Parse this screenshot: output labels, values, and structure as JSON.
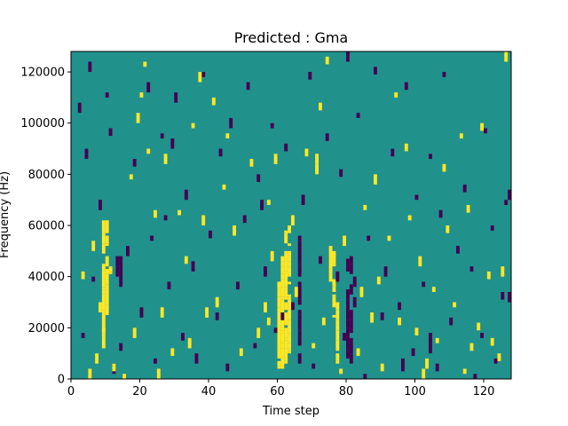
{
  "chart_data": {
    "type": "heatmap",
    "title": "Predicted : Gma",
    "xlabel": "Time step",
    "ylabel": "Frequency (Hz)",
    "xlim": [
      0,
      128
    ],
    "ylim": [
      0,
      128000
    ],
    "x_ticks": [
      0,
      20,
      40,
      60,
      80,
      100,
      120
    ],
    "y_ticks": [
      0,
      20000,
      40000,
      60000,
      80000,
      100000,
      120000
    ],
    "grid": false,
    "legend": "none",
    "colors": {
      "low": "#440154",
      "mid": "#21918c",
      "high": "#fde725"
    },
    "n_time_steps": 128,
    "n_freq_bins": 128,
    "background_value": 0,
    "high_columns": [
      {
        "x": 9,
        "f_from": 12000,
        "f_to": 62000
      },
      {
        "x": 10,
        "f_from": 22000,
        "f_to": 62000
      },
      {
        "x": 60,
        "f_from": 4000,
        "f_to": 38000
      },
      {
        "x": 61,
        "f_from": 4000,
        "f_to": 48000
      },
      {
        "x": 62,
        "f_from": 6000,
        "f_to": 58000
      },
      {
        "x": 63,
        "f_from": 10000,
        "f_to": 60000
      },
      {
        "x": 75,
        "f_from": 38000,
        "f_to": 52000
      },
      {
        "x": 76,
        "f_from": 24000,
        "f_to": 50000
      },
      {
        "x": 77,
        "f_from": 6000,
        "f_to": 30000
      },
      {
        "x": 71,
        "f_from": 80000,
        "f_to": 88000
      },
      {
        "x": 102,
        "f_from": 0,
        "f_to": 4000
      }
    ],
    "low_columns": [
      {
        "x": 13,
        "f_from": 36000,
        "f_to": 48000
      },
      {
        "x": 14,
        "f_from": 36000,
        "f_to": 48000
      },
      {
        "x": 66,
        "f_from": 6000,
        "f_to": 56000
      },
      {
        "x": 80,
        "f_from": 8000,
        "f_to": 48000
      },
      {
        "x": 81,
        "f_from": 6000,
        "f_to": 48000
      },
      {
        "x": 82,
        "f_from": 28000,
        "f_to": 44000
      },
      {
        "x": 96,
        "f_from": 0,
        "f_to": 8000
      },
      {
        "x": 104,
        "f_from": 10000,
        "f_to": 18000
      },
      {
        "x": 127,
        "f_from": 70000,
        "f_to": 74000
      },
      {
        "x": 127,
        "f_from": 30000,
        "f_to": 34000
      },
      {
        "x": 80,
        "f_from": 124000,
        "f_to": 128000
      },
      {
        "x": 4,
        "f_from": 86000,
        "f_to": 90000
      }
    ],
    "high_cells": [
      [
        5,
        4
      ],
      [
        7,
        10
      ],
      [
        9,
        20
      ],
      [
        12,
        6
      ],
      [
        8,
        30
      ],
      [
        6,
        54
      ],
      [
        11,
        44
      ],
      [
        15,
        2
      ],
      [
        17,
        80
      ],
      [
        19,
        104
      ],
      [
        20,
        112
      ],
      [
        21,
        124
      ],
      [
        22,
        90
      ],
      [
        25,
        4
      ],
      [
        26,
        28
      ],
      [
        27,
        88
      ],
      [
        29,
        12
      ],
      [
        31,
        66
      ],
      [
        33,
        48
      ],
      [
        34,
        16
      ],
      [
        35,
        100
      ],
      [
        37,
        120
      ],
      [
        39,
        28
      ],
      [
        41,
        110
      ],
      [
        42,
        32
      ],
      [
        44,
        76
      ],
      [
        45,
        96
      ],
      [
        47,
        60
      ],
      [
        49,
        12
      ],
      [
        52,
        86
      ],
      [
        54,
        20
      ],
      [
        56,
        30
      ],
      [
        57,
        70
      ],
      [
        58,
        50
      ],
      [
        59,
        88
      ],
      [
        64,
        64
      ],
      [
        65,
        36
      ],
      [
        68,
        90
      ],
      [
        70,
        14
      ],
      [
        72,
        108
      ],
      [
        73,
        24
      ],
      [
        74,
        126
      ],
      [
        78,
        4
      ],
      [
        79,
        56
      ],
      [
        83,
        12
      ],
      [
        84,
        36
      ],
      [
        85,
        68
      ],
      [
        87,
        26
      ],
      [
        88,
        80
      ],
      [
        89,
        40
      ],
      [
        90,
        6
      ],
      [
        92,
        56
      ],
      [
        94,
        112
      ],
      [
        95,
        24
      ],
      [
        97,
        92
      ],
      [
        98,
        64
      ],
      [
        100,
        20
      ],
      [
        101,
        48
      ],
      [
        103,
        8
      ],
      [
        105,
        36
      ],
      [
        106,
        16
      ],
      [
        108,
        84
      ],
      [
        109,
        60
      ],
      [
        111,
        30
      ],
      [
        113,
        96
      ],
      [
        114,
        4
      ],
      [
        115,
        68
      ],
      [
        116,
        14
      ],
      [
        118,
        22
      ],
      [
        119,
        100
      ],
      [
        121,
        42
      ],
      [
        122,
        16
      ],
      [
        124,
        10
      ],
      [
        125,
        44
      ],
      [
        126,
        128
      ],
      [
        57,
        24
      ],
      [
        38,
        64
      ],
      [
        18,
        20
      ],
      [
        3,
        42
      ],
      [
        24,
        66
      ]
    ],
    "low_cells": [
      [
        2,
        108
      ],
      [
        3,
        18
      ],
      [
        5,
        124
      ],
      [
        6,
        40
      ],
      [
        8,
        70
      ],
      [
        10,
        112
      ],
      [
        12,
        6
      ],
      [
        14,
        14
      ],
      [
        16,
        52
      ],
      [
        18,
        86
      ],
      [
        20,
        28
      ],
      [
        22,
        116
      ],
      [
        23,
        56
      ],
      [
        24,
        8
      ],
      [
        26,
        96
      ],
      [
        27,
        64
      ],
      [
        28,
        38
      ],
      [
        30,
        112
      ],
      [
        32,
        18
      ],
      [
        33,
        74
      ],
      [
        35,
        46
      ],
      [
        36,
        10
      ],
      [
        38,
        120
      ],
      [
        40,
        58
      ],
      [
        42,
        26
      ],
      [
        43,
        90
      ],
      [
        45,
        6
      ],
      [
        46,
        102
      ],
      [
        48,
        38
      ],
      [
        50,
        64
      ],
      [
        51,
        116
      ],
      [
        53,
        14
      ],
      [
        55,
        70
      ],
      [
        56,
        44
      ],
      [
        58,
        100
      ],
      [
        59,
        20
      ],
      [
        62,
        92
      ],
      [
        64,
        30
      ],
      [
        67,
        72
      ],
      [
        69,
        120
      ],
      [
        70,
        6
      ],
      [
        72,
        48
      ],
      [
        74,
        96
      ],
      [
        78,
        82
      ],
      [
        79,
        18
      ],
      [
        83,
        104
      ],
      [
        85,
        2
      ],
      [
        86,
        56
      ],
      [
        88,
        122
      ],
      [
        90,
        26
      ],
      [
        91,
        44
      ],
      [
        93,
        90
      ],
      [
        95,
        30
      ],
      [
        97,
        116
      ],
      [
        99,
        12
      ],
      [
        100,
        72
      ],
      [
        102,
        38
      ],
      [
        104,
        88
      ],
      [
        106,
        6
      ],
      [
        107,
        66
      ],
      [
        108,
        120
      ],
      [
        110,
        24
      ],
      [
        112,
        52
      ],
      [
        114,
        76
      ],
      [
        116,
        44
      ],
      [
        117,
        2
      ],
      [
        119,
        18
      ],
      [
        120,
        98
      ],
      [
        122,
        60
      ],
      [
        123,
        8
      ],
      [
        125,
        34
      ],
      [
        126,
        70
      ],
      [
        54,
        80
      ],
      [
        61,
        26
      ],
      [
        77,
        42
      ],
      [
        29,
        94
      ],
      [
        11,
        98
      ]
    ]
  }
}
